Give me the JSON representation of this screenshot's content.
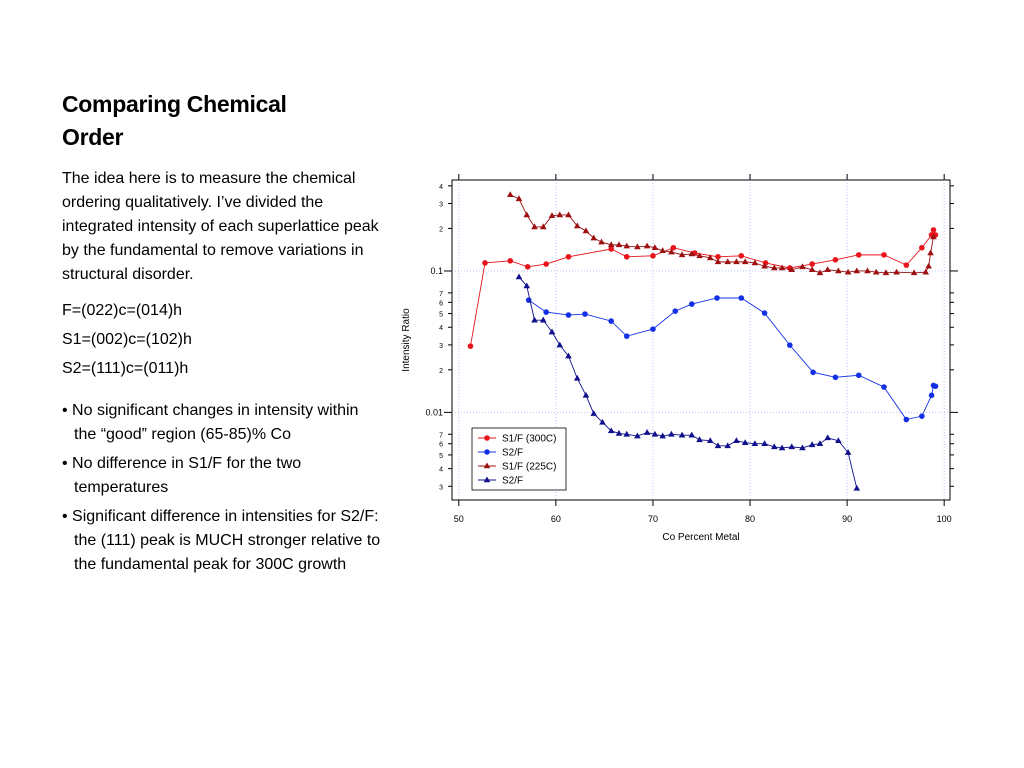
{
  "slide": {
    "title": "Comparing Chemical Order",
    "intro": "The idea here is to measure the chemical ordering qualitatively.  I’ve divided the integrated intensity of each superlattice peak by the fundamental to remove variations in structural disorder.",
    "definitions": [
      "F=(022)c=(014)h",
      "S1=(002)c=(102)h",
      "S2=(111)c=(011)h"
    ],
    "bullets": [
      "No significant changes in intensity within the “good” region (65-85)% Co",
      "No difference in S1/F for the two temperatures",
      "Significant difference in intensities for S2/F: the (111) peak is MUCH stronger relative to the fundamental peak for 300C growth"
    ]
  },
  "chart_data": {
    "type": "line",
    "xlabel": "Co Percent Metal",
    "ylabel": "Intensity Ratio",
    "log_y": true,
    "legend": "lower left",
    "xlim": [
      49.3,
      100.6
    ],
    "xticks": [
      50,
      60,
      70,
      80,
      90,
      100
    ],
    "ylim": [
      0.0024,
      0.44
    ],
    "yticks": [
      {
        "value": 0.4,
        "label": "4"
      },
      {
        "value": 0.3,
        "label": "3"
      },
      {
        "value": 0.2,
        "label": "2"
      },
      0.1,
      {
        "value": 0.07,
        "label": "7"
      },
      {
        "value": 0.06,
        "label": "6"
      },
      {
        "value": 0.05,
        "label": "5"
      },
      {
        "value": 0.04,
        "label": "4"
      },
      {
        "value": 0.03,
        "label": "3"
      },
      {
        "value": 0.02,
        "label": "2"
      },
      0.01,
      {
        "value": 0.007,
        "label": "7"
      },
      {
        "value": 0.006,
        "label": "6"
      },
      {
        "value": 0.005,
        "label": "5"
      },
      {
        "value": 0.004,
        "label": "4"
      },
      {
        "value": 0.003,
        "label": "3"
      }
    ],
    "series": [
      {
        "name": "S1/F (300C)",
        "color": "#e8141c",
        "marker": "circle",
        "x": [
          51.2,
          52.7,
          55.3,
          57.1,
          59.0,
          61.3,
          65.7,
          67.3,
          70.0,
          72.1,
          74.3,
          76.7,
          79.1,
          81.6,
          84.1,
          86.4,
          88.8,
          91.2,
          93.8,
          96.1,
          97.7,
          98.7,
          98.9,
          99.1
        ],
        "values": [
          0.0294,
          0.114,
          0.118,
          0.107,
          0.112,
          0.126,
          0.143,
          0.126,
          0.128,
          0.146,
          0.134,
          0.126,
          0.128,
          0.114,
          0.105,
          0.112,
          0.12,
          0.13,
          0.13,
          0.11,
          0.146,
          0.18,
          0.195,
          0.18
        ]
      },
      {
        "name": "S2/F",
        "color": "#1430e6",
        "marker": "circle",
        "x": [
          57.2,
          59.0,
          61.3,
          63.0,
          65.7,
          67.3,
          70.0,
          72.3,
          74.0,
          76.6,
          79.1,
          81.5,
          84.1,
          86.5,
          88.8,
          91.2,
          93.8,
          96.1,
          97.7,
          98.7,
          98.9,
          99.1
        ],
        "values": [
          0.0622,
          0.0512,
          0.0488,
          0.0496,
          0.0442,
          0.0346,
          0.0388,
          0.052,
          0.0583,
          0.0644,
          0.0644,
          0.0504,
          0.0299,
          0.0192,
          0.0177,
          0.0183,
          0.0151,
          0.0089,
          0.0094,
          0.0132,
          0.0155,
          0.0153
        ]
      },
      {
        "name": "S1/F (225C)",
        "color": "#9c1010",
        "marker": "triangle",
        "x": [
          55.3,
          56.2,
          57.0,
          57.8,
          58.7,
          59.6,
          60.4,
          61.3,
          62.2,
          63.1,
          63.9,
          64.7,
          65.7,
          66.5,
          67.3,
          68.4,
          69.4,
          70.2,
          71.0,
          71.9,
          73.0,
          74.0,
          74.8,
          75.9,
          76.7,
          77.7,
          78.6,
          79.5,
          80.5,
          81.5,
          82.5,
          83.3,
          84.3,
          85.4,
          86.4,
          87.2,
          88.0,
          89.1,
          90.1,
          91.0,
          92.1,
          93.0,
          94.0,
          95.1,
          96.9,
          98.1,
          98.4,
          98.6,
          98.9
        ],
        "values": [
          0.346,
          0.324,
          0.249,
          0.205,
          0.205,
          0.246,
          0.249,
          0.249,
          0.208,
          0.192,
          0.171,
          0.16,
          0.153,
          0.153,
          0.15,
          0.148,
          0.15,
          0.146,
          0.139,
          0.136,
          0.13,
          0.132,
          0.128,
          0.124,
          0.116,
          0.116,
          0.116,
          0.116,
          0.114,
          0.108,
          0.105,
          0.105,
          0.102,
          0.107,
          0.102,
          0.097,
          0.102,
          0.1,
          0.098,
          0.1,
          0.1,
          0.098,
          0.097,
          0.098,
          0.097,
          0.098,
          0.108,
          0.134,
          0.174
        ]
      },
      {
        "name": "S2/F",
        "color": "#10108c",
        "marker": "triangle",
        "x": [
          56.2,
          57.0,
          57.8,
          58.7,
          59.6,
          60.4,
          61.3,
          62.2,
          63.1,
          63.9,
          64.8,
          65.7,
          66.5,
          67.3,
          68.4,
          69.4,
          70.2,
          71.0,
          71.9,
          73.0,
          74.0,
          74.8,
          75.9,
          76.7,
          77.7,
          78.6,
          79.5,
          80.5,
          81.5,
          82.5,
          83.3,
          84.3,
          85.4,
          86.4,
          87.2,
          88.0,
          89.1,
          90.1,
          91.0
        ],
        "values": [
          0.0907,
          0.0783,
          0.0449,
          0.0449,
          0.037,
          0.0299,
          0.025,
          0.0174,
          0.0132,
          0.0098,
          0.0085,
          0.0074,
          0.0071,
          0.007,
          0.0068,
          0.0072,
          0.007,
          0.0068,
          0.007,
          0.0069,
          0.0069,
          0.0064,
          0.0063,
          0.0058,
          0.0058,
          0.0063,
          0.0061,
          0.006,
          0.006,
          0.0057,
          0.0056,
          0.0057,
          0.0056,
          0.0059,
          0.006,
          0.0066,
          0.0063,
          0.0052,
          0.0029
        ]
      }
    ]
  }
}
